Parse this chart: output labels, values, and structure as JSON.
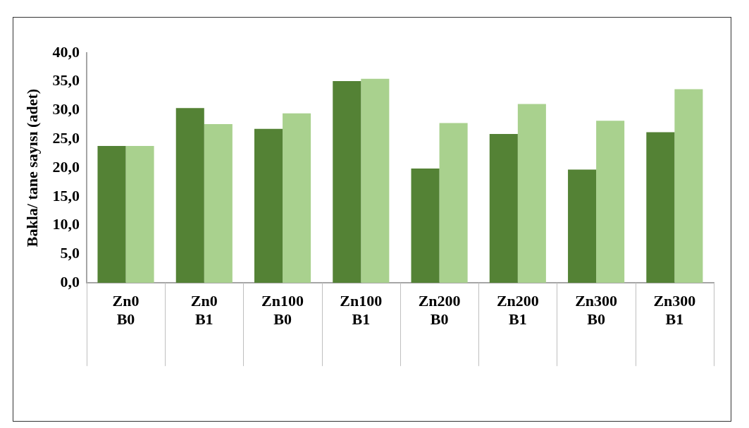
{
  "chart_data": {
    "type": "bar",
    "ylabel": "Bakla/ tane sayısı (adet)",
    "categories": [
      "Zn0\nB0",
      "Zn0\nB1",
      "Zn100\nB0",
      "Zn100\nB1",
      "Zn200\nB0",
      "Zn200\nB1",
      "Zn300\nB0",
      "Zn300\nB1"
    ],
    "series": [
      {
        "color": "#548235",
        "values": [
          23.8,
          30.4,
          26.8,
          35.1,
          19.9,
          25.9,
          19.7,
          26.2
        ]
      },
      {
        "color": "#a9d18e",
        "values": [
          23.8,
          27.6,
          29.5,
          35.5,
          27.8,
          31.1,
          28.2,
          33.7
        ]
      }
    ],
    "ylim": [
      0,
      40
    ],
    "yticks": [
      {
        "value": 0,
        "label": "0,0"
      },
      {
        "value": 5,
        "label": "5,0"
      },
      {
        "value": 10,
        "label": "10,0"
      },
      {
        "value": 15,
        "label": "15,0"
      },
      {
        "value": 20,
        "label": "20,0"
      },
      {
        "value": 25,
        "label": "25,0"
      },
      {
        "value": 30,
        "label": "30,0"
      },
      {
        "value": 35,
        "label": "35,0"
      },
      {
        "value": 40,
        "label": "40,0"
      }
    ],
    "grid": false
  }
}
